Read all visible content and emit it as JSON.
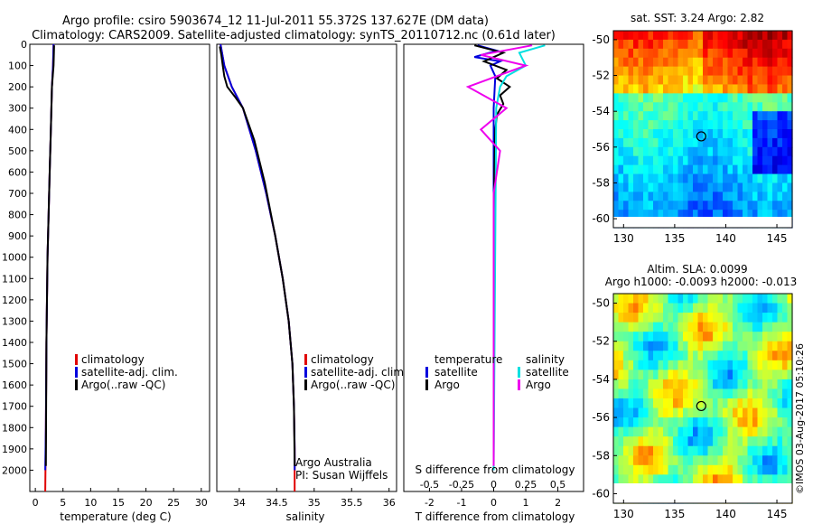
{
  "header": {
    "title_line1": "Argo profile: csiro 5903674_12 11-Jul-2011 55.372S 137.627E (DM data)",
    "title_line2": "Climatology: CARS2009. Satellite-adjusted climatology: synTS_20110712.nc (0.61d later)"
  },
  "colors": {
    "climatology": "#e00000",
    "satellite": "#0000dd",
    "argo": "#000000",
    "sat_salinity": "#00e0e0",
    "argo_salinity": "#ee00ee"
  },
  "chart_data": [
    {
      "type": "line",
      "name": "temperature",
      "xlabel": "temperature (deg C)",
      "ylabel": "",
      "xlim": [
        -1,
        31.5
      ],
      "ylim": [
        2100,
        0
      ],
      "xticks": [
        0,
        5,
        10,
        15,
        20,
        25,
        30
      ],
      "yticks": [
        0,
        100,
        200,
        300,
        400,
        500,
        600,
        700,
        800,
        900,
        1000,
        1100,
        1200,
        1300,
        1400,
        1500,
        1600,
        1700,
        1800,
        1900,
        2000
      ],
      "legend": [
        "climatology",
        "satellite-adj. clim.",
        "Argo(..raw -QC)"
      ],
      "series": [
        {
          "name": "climatology",
          "color": "#e00000",
          "x": [
            3.3,
            3.2,
            3.0,
            2.8,
            2.6,
            2.4,
            2.2,
            2.0,
            1.9,
            1.8
          ],
          "y": [
            0,
            100,
            200,
            400,
            600,
            800,
            1000,
            1400,
            1800,
            2100
          ]
        },
        {
          "name": "satellite-adj. clim.",
          "color": "#0000dd",
          "x": [
            3.3,
            3.2,
            3.0,
            2.8,
            2.6,
            2.4,
            2.2,
            2.0,
            1.9,
            1.8
          ],
          "y": [
            0,
            100,
            200,
            400,
            600,
            800,
            1000,
            1400,
            1800,
            2000
          ]
        },
        {
          "name": "Argo(..raw -QC)",
          "color": "#000000",
          "x": [
            3.4,
            3.3,
            3.0,
            2.9,
            2.8,
            2.6,
            2.4,
            2.2,
            2.0,
            1.9
          ],
          "y": [
            5,
            100,
            200,
            300,
            400,
            600,
            800,
            1000,
            1400,
            1980
          ]
        }
      ]
    },
    {
      "type": "line",
      "name": "salinity",
      "xlabel": "salinity",
      "xlim": [
        33.7,
        36.1
      ],
      "ylim": [
        2100,
        0
      ],
      "xticks": [
        34,
        34.5,
        35,
        35.5,
        36
      ],
      "legend": [
        "climatology",
        "satellite-adj. clim.",
        "Argo(..raw -QC)"
      ],
      "annotation_line1": "Argo Australia",
      "annotation_line2": "PI: Susan Wijffels",
      "series": [
        {
          "name": "climatology",
          "color": "#e00000",
          "x": [
            33.75,
            33.8,
            33.9,
            34.05,
            34.22,
            34.36,
            34.48,
            34.58,
            34.66,
            34.71,
            34.73,
            34.74,
            34.74
          ],
          "y": [
            0,
            100,
            200,
            300,
            500,
            700,
            900,
            1100,
            1300,
            1500,
            1700,
            1900,
            2100
          ]
        },
        {
          "name": "satellite-adj. clim.",
          "color": "#0000dd",
          "x": [
            33.75,
            33.8,
            33.9,
            34.05,
            34.22,
            34.36,
            34.48,
            34.58,
            34.66,
            34.71,
            34.73,
            34.74,
            34.74
          ],
          "y": [
            0,
            100,
            200,
            300,
            500,
            700,
            900,
            1100,
            1300,
            1500,
            1700,
            1900,
            2000
          ]
        },
        {
          "name": "Argo(..raw -QC)",
          "color": "#000000",
          "x": [
            33.74,
            33.76,
            33.78,
            33.8,
            33.84,
            33.95,
            34.05,
            34.2,
            34.34,
            34.48,
            34.58,
            34.66,
            34.71,
            34.73,
            34.74
          ],
          "y": [
            10,
            50,
            100,
            150,
            200,
            250,
            300,
            450,
            650,
            900,
            1100,
            1300,
            1500,
            1700,
            1980
          ]
        }
      ]
    },
    {
      "type": "line",
      "name": "differences",
      "xlabel": "T difference from climatology",
      "xlabel_top": "S difference from climatology",
      "xlim": [
        -2.8,
        2.8
      ],
      "ylim": [
        2100,
        0
      ],
      "xticks_bottom": [
        -2,
        -1,
        0,
        1,
        2
      ],
      "xticks_top": [
        -0.5,
        -0.25,
        0,
        0.25,
        0.5
      ],
      "xticks_top_labels": [
        "-0.5",
        "-0.25",
        "0",
        "0.25",
        "0.5"
      ],
      "legend_left_title": "temperature",
      "legend_right_title": "salinity",
      "legend_left": [
        "satellite",
        "Argo"
      ],
      "legend_right": [
        "satellite",
        "Argo"
      ],
      "series": [
        {
          "name": "T satellite",
          "color": "#0000dd",
          "x": [
            -0.5,
            0.1,
            -0.6,
            0.2,
            -0.1,
            0.05,
            0,
            0,
            0
          ],
          "y": [
            5,
            30,
            60,
            80,
            100,
            150,
            300,
            1000,
            2000
          ]
        },
        {
          "name": "T Argo",
          "color": "#000000",
          "x": [
            -0.6,
            0.3,
            -0.3,
            0.4,
            0.1,
            0.5,
            0.2,
            0.3,
            0.1,
            0.05,
            0.02,
            0
          ],
          "y": [
            5,
            40,
            80,
            120,
            160,
            200,
            240,
            280,
            330,
            400,
            600,
            1980
          ]
        },
        {
          "name": "S satellite",
          "color": "#00e0e0",
          "x": [
            0.4,
            0.2,
            0.25,
            0.1,
            0.05,
            0.02,
            0
          ],
          "y": [
            5,
            40,
            100,
            150,
            200,
            300,
            2000
          ]
        },
        {
          "name": "S Argo",
          "color": "#ee00ee",
          "x": [
            0.3,
            -0.1,
            0.25,
            -0.2,
            0.1,
            -0.1,
            0.05,
            0,
            0
          ],
          "y": [
            5,
            50,
            100,
            200,
            300,
            400,
            500,
            700,
            1980
          ]
        }
      ]
    },
    {
      "type": "heatmap",
      "name": "sst_map",
      "title": "sat. SST: 3.24 Argo: 2.82",
      "xlim": [
        129,
        146.5
      ],
      "ylim": [
        -60.5,
        -49.5
      ],
      "xticks": [
        130,
        135,
        140,
        145
      ],
      "yticks": [
        -50,
        -52,
        -54,
        -56,
        -58,
        -60
      ],
      "marker": {
        "lon": 137.6,
        "lat": -55.4
      }
    },
    {
      "type": "heatmap",
      "name": "sla_map",
      "title_line1": "Altim. SLA: 0.0099",
      "title_line2": "Argo h1000: -0.0093 h2000: -0.013",
      "xlim": [
        129,
        146.5
      ],
      "ylim": [
        -60.5,
        -49.5
      ],
      "xticks": [
        130,
        135,
        140,
        145
      ],
      "yticks": [
        -50,
        -52,
        -54,
        -56,
        -58,
        -60
      ],
      "marker": {
        "lon": 137.6,
        "lat": -55.4
      }
    }
  ],
  "watermark": "©IMOS 03-Aug-2017 05:10:26"
}
